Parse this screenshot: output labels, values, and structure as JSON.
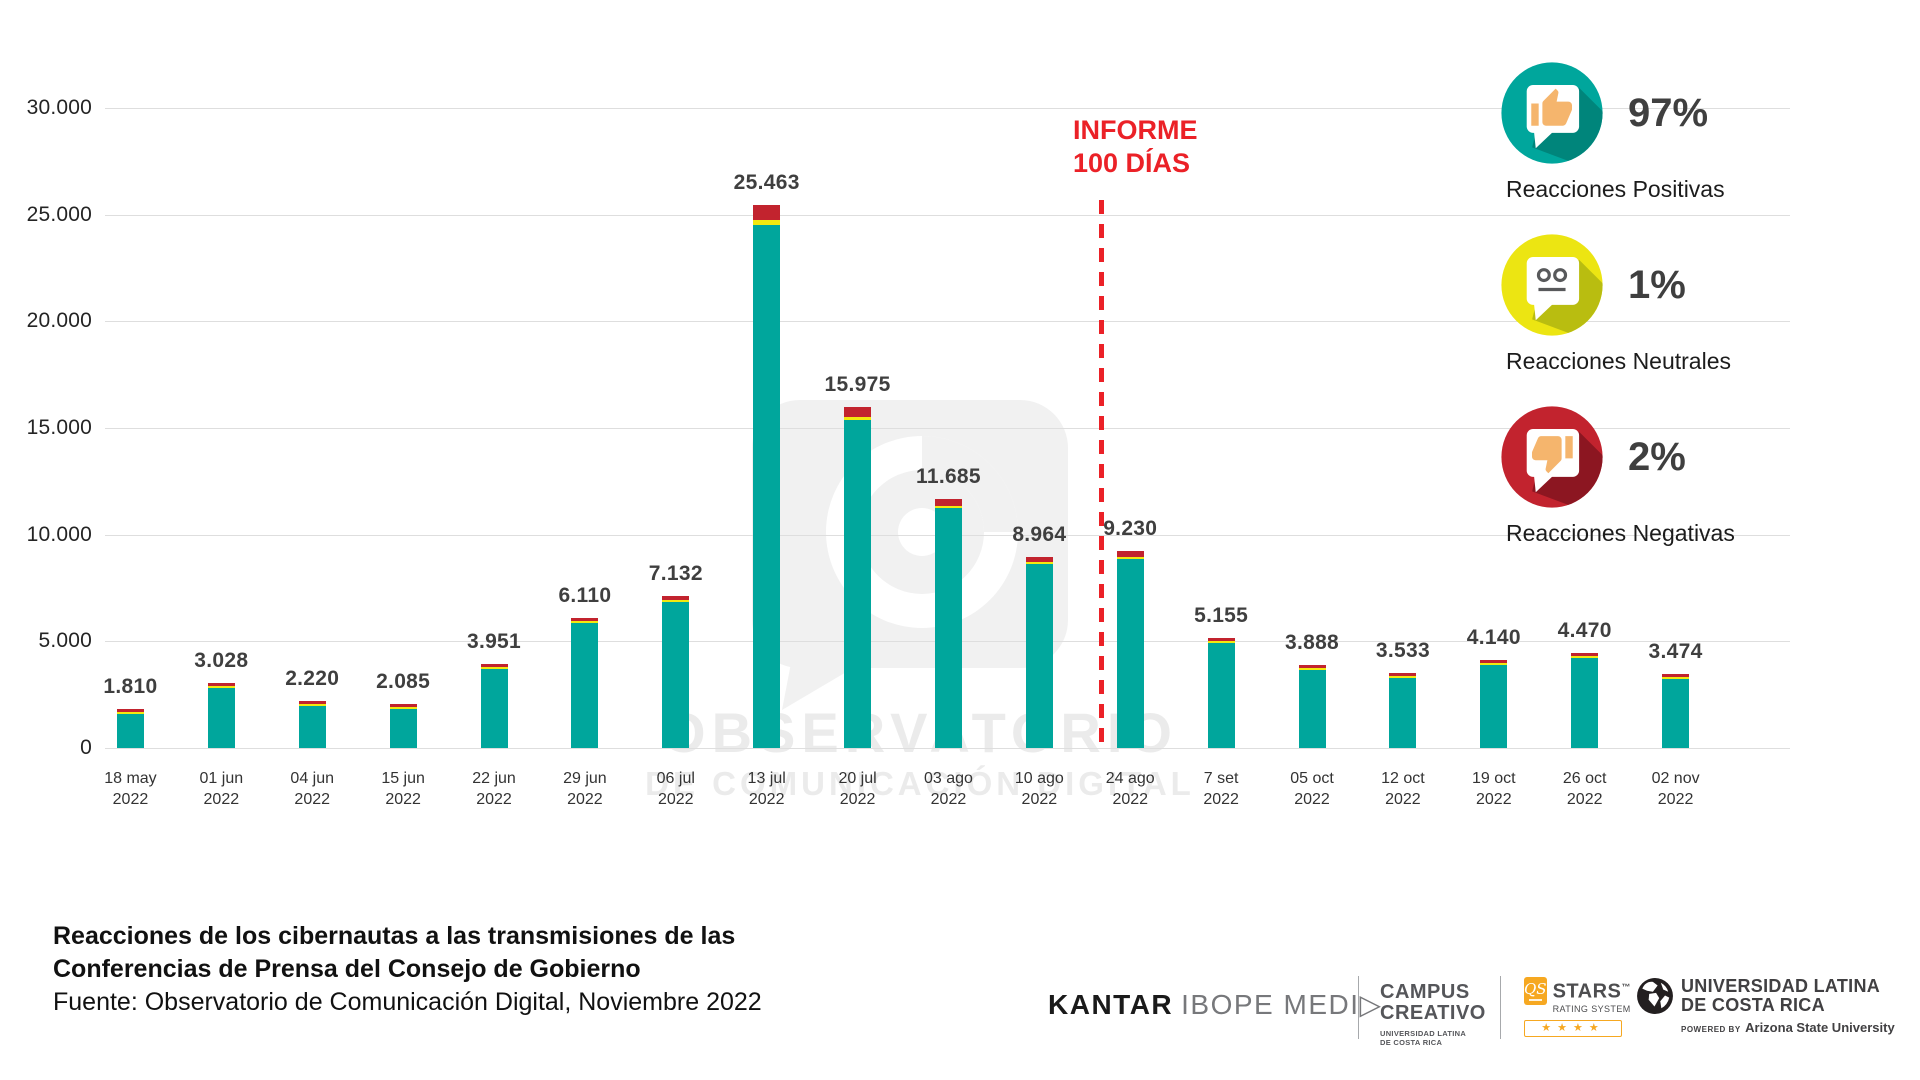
{
  "chart_data": {
    "type": "bar",
    "stacked": true,
    "title": "Reacciones de los cibernautas a las transmisiones de las Conferencias de Prensa del Consejo de Gobierno",
    "categories": [
      "18 may 2022",
      "01 jun 2022",
      "04 jun 2022",
      "15 jun 2022",
      "22 jun 2022",
      "29 jun 2022",
      "06 jul 2022",
      "13 jul 2022",
      "20 jul 2022",
      "03 ago 2022",
      "10 ago 2022",
      "24 ago 2022",
      "7 set 2022",
      "05 oct 2022",
      "12 oct 2022",
      "19 oct 2022",
      "26 oct 2022",
      "02 nov 2022"
    ],
    "values": [
      1810,
      3028,
      2220,
      2085,
      3951,
      6110,
      7132,
      25463,
      15975,
      11685,
      8964,
      9230,
      5155,
      3888,
      3533,
      4140,
      4470,
      3474
    ],
    "value_labels": [
      "1.810",
      "3.028",
      "2.220",
      "2.085",
      "3.951",
      "6.110",
      "7.132",
      "25.463",
      "15.975",
      "11.685",
      "8.964",
      "9.230",
      "5.155",
      "3.888",
      "3.533",
      "4.140",
      "4.470",
      "3.474"
    ],
    "ylim": [
      0,
      30000
    ],
    "ytick_labels": [
      "30.000",
      "25.000",
      "20.000",
      "15.000",
      "10.000",
      "5.000",
      "0"
    ],
    "grid": true,
    "legend_position": "right",
    "composition": {
      "positivas": 0.97,
      "neutrales": 0.01,
      "negativas": 0.02
    },
    "annotation": {
      "text_line1": "INFORME",
      "text_line2": "100 DÍAS",
      "after_category": "10 ago 2022"
    }
  },
  "legend": {
    "items": [
      {
        "name": "positivas",
        "icon": "thumb-up-bubble-icon",
        "percent": "97%",
        "label": "Reacciones Positivas",
        "color": "#00a69c",
        "shadow": "#00857b"
      },
      {
        "name": "neutrales",
        "icon": "neutral-face-bubble-icon",
        "percent": "1%",
        "label": "Reacciones Neutrales",
        "color": "#ece512",
        "shadow": "#b9bd10"
      },
      {
        "name": "negativas",
        "icon": "thumb-down-bubble-icon",
        "percent": "2%",
        "label": "Reacciones Negativas",
        "color": "#c2232e",
        "shadow": "#8c1621"
      }
    ]
  },
  "watermark": {
    "line1": "OBSERVATORIO",
    "line2": "DE COMUNICACIÓN DIGITAL"
  },
  "colors": {
    "bar_positive": "#00a69c",
    "bar_neutral": "#f2e90f",
    "bar_negative": "#c2232e",
    "annotation_red": "#eb2127",
    "gridline": "#dedede",
    "value_label": "#3f3f3f",
    "watermark": "#ebebeb",
    "hand": "#f5b56d",
    "qs_orange": "#f6a821"
  },
  "footer": {
    "title_line1": "Reacciones de los cibernautas a las transmisiones de las",
    "title_line2": "Conferencias de Prensa del Consejo de Gobierno",
    "source": "Fuente: Observatorio de Comunicación Digital, Noviembre 2022",
    "logos": {
      "kantar": {
        "black": "KANTAR",
        "gray": "IBOPE MEDI▷"
      },
      "campus": {
        "line1": "CAMPUS",
        "line2": "CREATIVO",
        "sub1": "UNIVERSIDAD LATINA",
        "sub2": "DE COSTA RICA"
      },
      "qs": {
        "badge": "QS",
        "name": "STARS",
        "tm": "™",
        "sub": "RATING SYSTEM",
        "stars": "★★★★"
      },
      "ulatina": {
        "line1": "UNIVERSIDAD LATINA",
        "line2": "DE COSTA RICA",
        "powered": "POWERED BY",
        "powered_by": "Arizona State University"
      }
    }
  }
}
